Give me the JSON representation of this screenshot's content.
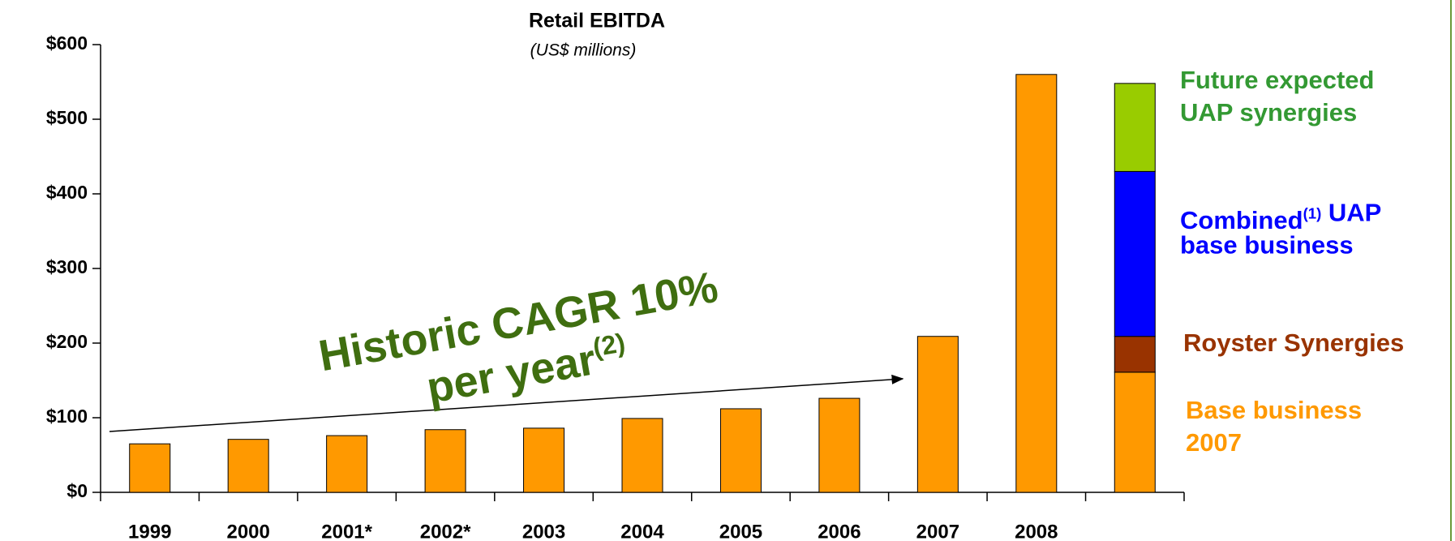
{
  "chart_data": {
    "type": "stacked_bar",
    "title": "Retail EBITDA",
    "subtitle": "(US$ millions)",
    "categories": [
      "1999",
      "2000",
      "2001*",
      "2002*",
      "2003",
      "2004",
      "2005",
      "2006",
      "2007",
      "2008",
      null
    ],
    "series": [
      {
        "name": "Base business\n2007",
        "color": "#ff9900",
        "label_color": "#ff9900",
        "values": [
          65,
          71,
          76,
          84,
          86,
          99,
          112,
          126,
          209,
          560,
          161
        ]
      },
      {
        "name": "Royster Synergies",
        "color": "#993300",
        "label_color": "#993300",
        "values": [
          null,
          null,
          null,
          null,
          null,
          null,
          null,
          null,
          null,
          null,
          48
        ]
      },
      {
        "name": "Combined(1) UAP\nbase business",
        "color": "#0000ff",
        "label_color": "#0000ff",
        "values": [
          null,
          null,
          null,
          null,
          null,
          null,
          null,
          null,
          null,
          null,
          221
        ]
      },
      {
        "name": "Future expected\nUAP synergies",
        "color": "#99cc00",
        "label_color": "#339933",
        "values": [
          null,
          null,
          null,
          null,
          null,
          null,
          null,
          null,
          null,
          null,
          118
        ]
      }
    ],
    "annotation": "Historic CAGR 10%\nper year(2)",
    "annotation_color": "#3f6e10",
    "ylim": [
      0,
      600
    ],
    "yticks": [
      {
        "value": 0,
        "label": "$0"
      },
      {
        "value": 100,
        "label": "$100"
      },
      {
        "value": 200,
        "label": "$200"
      },
      {
        "value": 300,
        "label": "$300"
      },
      {
        "value": 400,
        "label": "$400"
      },
      {
        "value": 500,
        "label": "$500"
      },
      {
        "value": 600,
        "label": "$600"
      }
    ],
    "grid": false
  }
}
